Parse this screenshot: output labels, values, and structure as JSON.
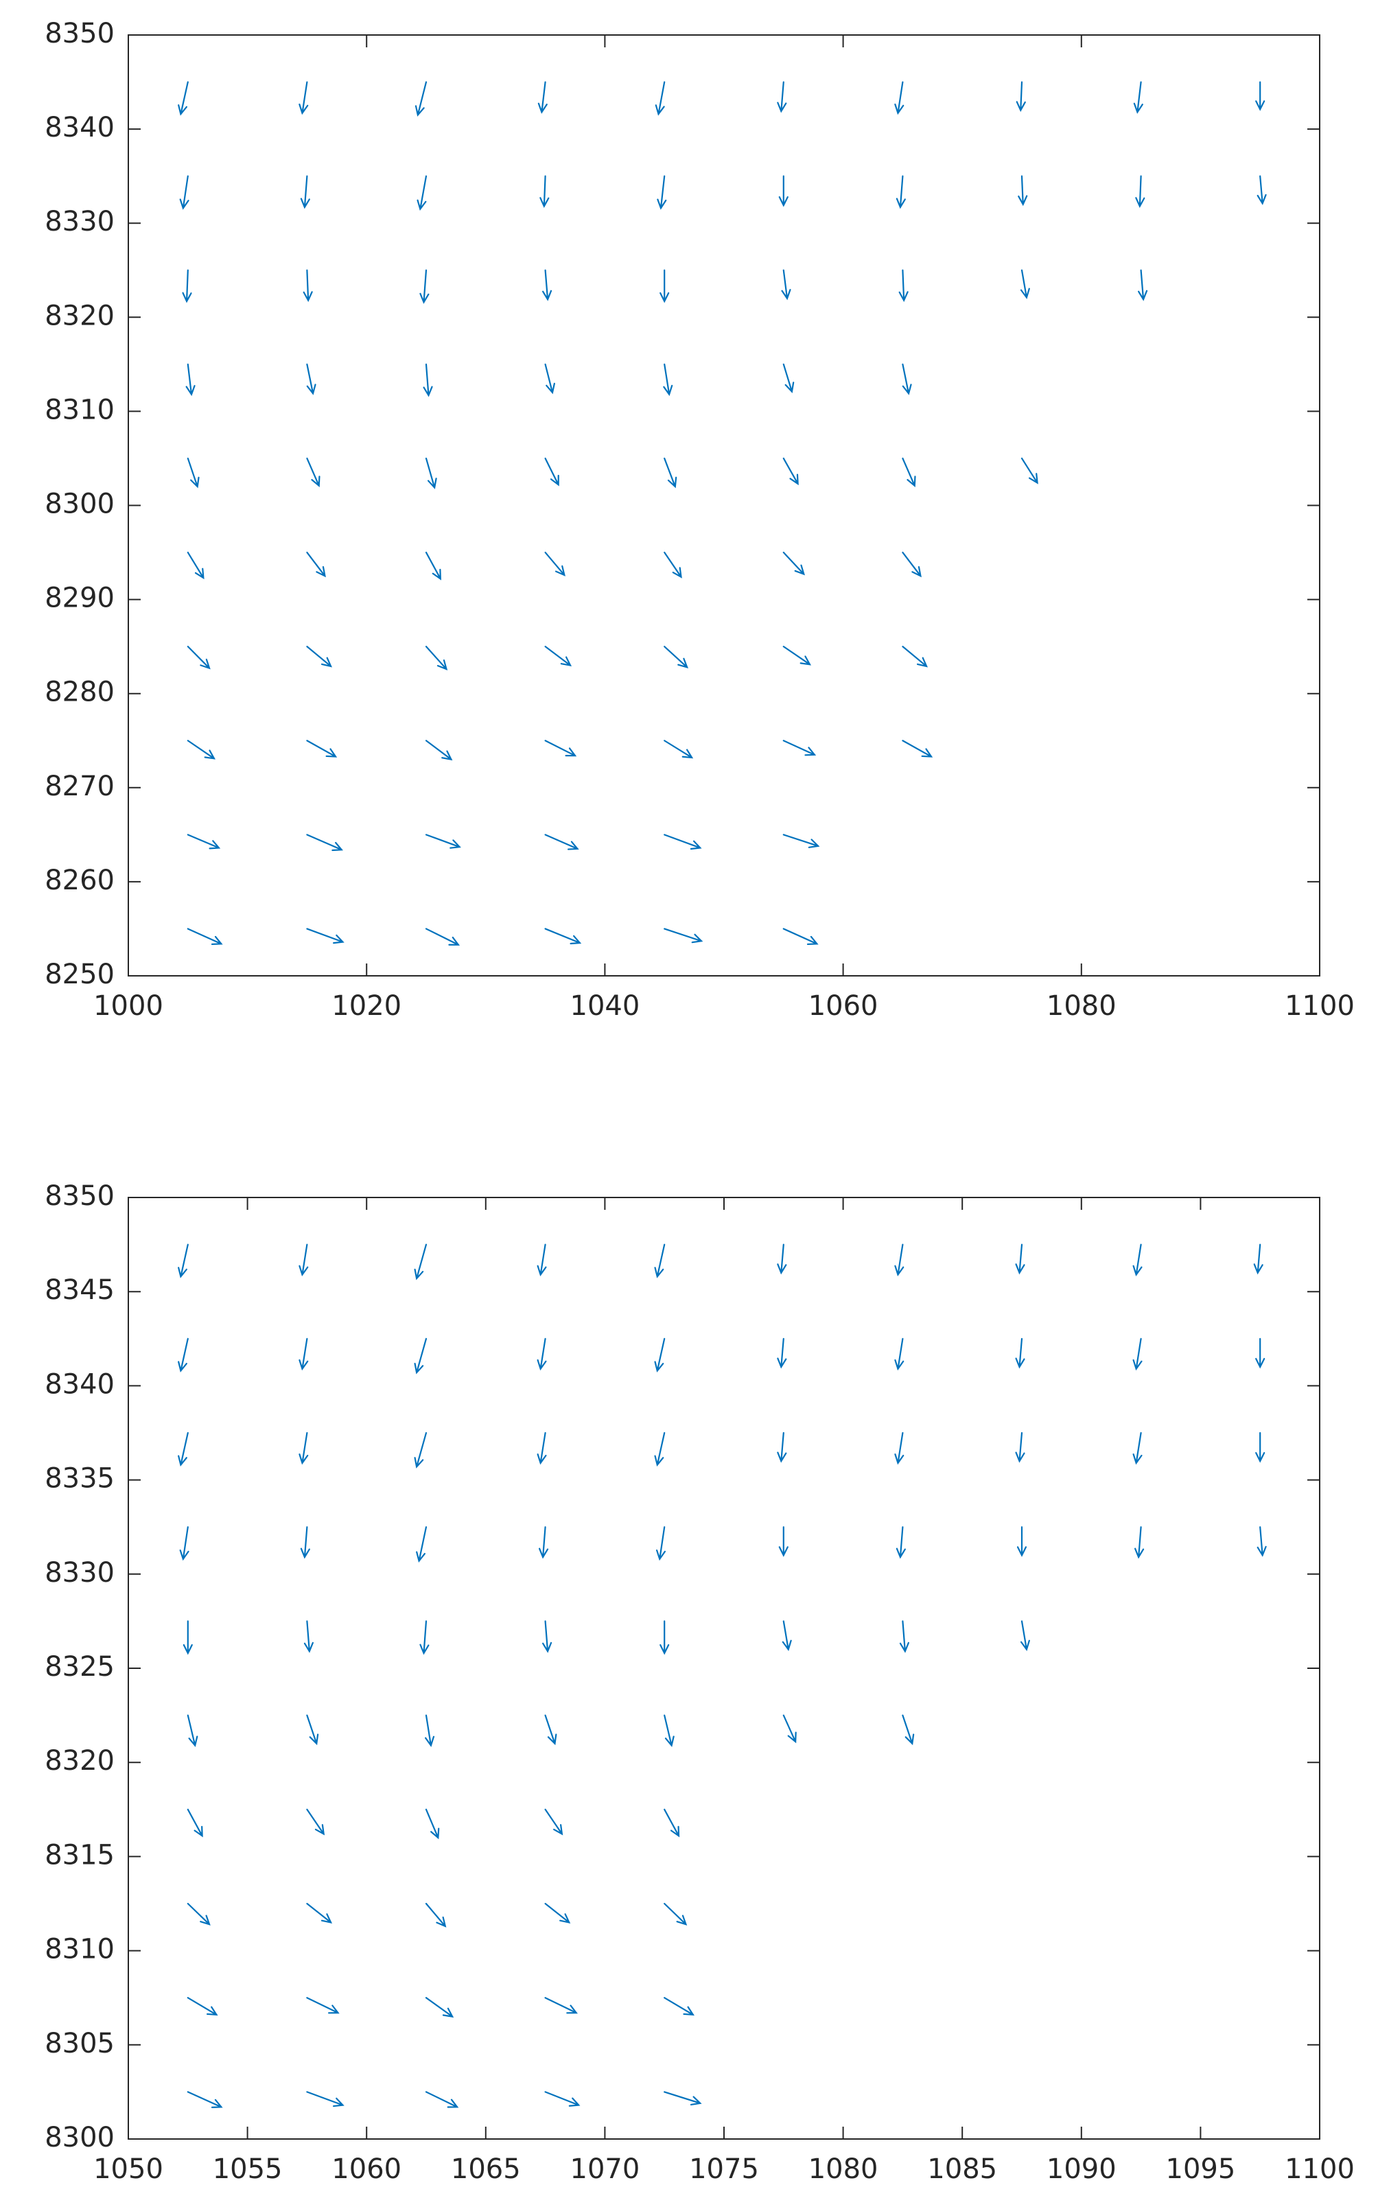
{
  "chart_data": [
    {
      "type": "quiver",
      "color": "#0072bd",
      "xlim": [
        1000,
        1100
      ],
      "ylim": [
        8250,
        8350
      ],
      "xticks": [
        1000,
        1020,
        1040,
        1060,
        1080,
        1100
      ],
      "yticks": [
        8250,
        8260,
        8270,
        8280,
        8290,
        8300,
        8310,
        8320,
        8330,
        8340,
        8350
      ],
      "x": [
        1005,
        1015,
        1025,
        1035,
        1045,
        1055,
        1005,
        1015,
        1025,
        1035,
        1045,
        1055,
        1005,
        1015,
        1025,
        1035,
        1045,
        1055,
        1065,
        1005,
        1015,
        1025,
        1035,
        1045,
        1055,
        1065,
        1005,
        1015,
        1025,
        1035,
        1045,
        1055,
        1065,
        1005,
        1015,
        1025,
        1035,
        1045,
        1055,
        1065,
        1075,
        1005,
        1015,
        1025,
        1035,
        1045,
        1055,
        1065,
        1005,
        1015,
        1025,
        1035,
        1045,
        1055,
        1065,
        1075,
        1085,
        1005,
        1015,
        1025,
        1035,
        1045,
        1055,
        1065,
        1075,
        1085,
        1095,
        1005,
        1015,
        1025,
        1035,
        1045,
        1055,
        1065,
        1075,
        1085,
        1095
      ],
      "y": [
        8255,
        8255,
        8255,
        8255,
        8255,
        8255,
        8265,
        8265,
        8265,
        8265,
        8265,
        8265,
        8275,
        8275,
        8275,
        8275,
        8275,
        8275,
        8275,
        8285,
        8285,
        8285,
        8285,
        8285,
        8285,
        8285,
        8295,
        8295,
        8295,
        8295,
        8295,
        8295,
        8295,
        8305,
        8305,
        8305,
        8305,
        8305,
        8305,
        8305,
        8305,
        8315,
        8315,
        8315,
        8315,
        8315,
        8315,
        8315,
        8325,
        8325,
        8325,
        8325,
        8325,
        8325,
        8325,
        8325,
        8325,
        8335,
        8335,
        8335,
        8335,
        8335,
        8335,
        8335,
        8335,
        8335,
        8335,
        8345,
        8345,
        8345,
        8345,
        8345,
        8345,
        8345,
        8345,
        8345,
        8345
      ],
      "u": [
        2.8,
        3.0,
        2.7,
        2.9,
        3.1,
        2.8,
        2.6,
        2.9,
        2.8,
        2.7,
        3.0,
        2.9,
        2.2,
        2.4,
        2.1,
        2.5,
        2.3,
        2.6,
        2.4,
        1.8,
        2.0,
        1.7,
        2.1,
        1.9,
        2.2,
        2.0,
        1.3,
        1.5,
        1.2,
        1.6,
        1.4,
        1.7,
        1.5,
        0.8,
        1.0,
        0.7,
        1.1,
        0.9,
        1.2,
        1.0,
        1.3,
        0.3,
        0.5,
        0.2,
        0.6,
        0.4,
        0.7,
        0.5,
        -0.1,
        0.1,
        -0.2,
        0.2,
        0.0,
        0.3,
        0.1,
        0.4,
        0.2,
        -0.4,
        -0.2,
        -0.5,
        -0.1,
        -0.3,
        0.0,
        -0.2,
        0.1,
        -0.1,
        0.2,
        -0.6,
        -0.4,
        -0.7,
        -0.3,
        -0.5,
        -0.2,
        -0.4,
        -0.1,
        -0.3,
        0.0
      ],
      "v": [
        -1.6,
        -1.4,
        -1.7,
        -1.5,
        -1.3,
        -1.6,
        -1.4,
        -1.6,
        -1.3,
        -1.5,
        -1.4,
        -1.2,
        -1.9,
        -1.7,
        -2.0,
        -1.6,
        -1.8,
        -1.5,
        -1.7,
        -2.3,
        -2.1,
        -2.4,
        -2.0,
        -2.2,
        -1.9,
        -2.1,
        -2.7,
        -2.5,
        -2.8,
        -2.4,
        -2.6,
        -2.3,
        -2.5,
        -3.0,
        -2.9,
        -3.1,
        -2.8,
        -3.0,
        -2.7,
        -2.9,
        -2.6,
        -3.2,
        -3.1,
        -3.3,
        -3.0,
        -3.2,
        -2.9,
        -3.1,
        -3.3,
        -3.2,
        -3.4,
        -3.1,
        -3.3,
        -3.0,
        -3.2,
        -2.9,
        -3.1,
        -3.4,
        -3.3,
        -3.5,
        -3.2,
        -3.4,
        -3.1,
        -3.3,
        -3.0,
        -3.2,
        -2.9,
        -3.4,
        -3.3,
        -3.5,
        -3.2,
        -3.4,
        -3.1,
        -3.3,
        -3.0,
        -3.2,
        -2.9
      ]
    },
    {
      "type": "quiver",
      "color": "#0072bd",
      "xlim": [
        1050,
        1100
      ],
      "ylim": [
        8300,
        8350
      ],
      "xticks": [
        1050,
        1055,
        1060,
        1065,
        1070,
        1075,
        1080,
        1085,
        1090,
        1095,
        1100
      ],
      "yticks": [
        8300,
        8305,
        8310,
        8315,
        8320,
        8325,
        8330,
        8335,
        8340,
        8345,
        8350
      ],
      "x": [
        1052.5,
        1057.5,
        1062.5,
        1067.5,
        1072.5,
        1052.5,
        1057.5,
        1062.5,
        1067.5,
        1072.5,
        1052.5,
        1057.5,
        1062.5,
        1067.5,
        1072.5,
        1052.5,
        1057.5,
        1062.5,
        1067.5,
        1072.5,
        1052.5,
        1057.5,
        1062.5,
        1067.5,
        1072.5,
        1077.5,
        1082.5,
        1052.5,
        1057.5,
        1062.5,
        1067.5,
        1072.5,
        1077.5,
        1082.5,
        1087.5,
        1052.5,
        1057.5,
        1062.5,
        1067.5,
        1072.5,
        1077.5,
        1082.5,
        1087.5,
        1092.5,
        1097.5,
        1052.5,
        1057.5,
        1062.5,
        1067.5,
        1072.5,
        1077.5,
        1082.5,
        1087.5,
        1092.5,
        1097.5,
        1052.5,
        1057.5,
        1062.5,
        1067.5,
        1072.5,
        1077.5,
        1082.5,
        1087.5,
        1092.5,
        1097.5,
        1052.5,
        1057.5,
        1062.5,
        1067.5,
        1072.5,
        1077.5,
        1082.5,
        1087.5,
        1092.5,
        1097.5
      ],
      "y": [
        8302.5,
        8302.5,
        8302.5,
        8302.5,
        8302.5,
        8307.5,
        8307.5,
        8307.5,
        8307.5,
        8307.5,
        8312.5,
        8312.5,
        8312.5,
        8312.5,
        8312.5,
        8317.5,
        8317.5,
        8317.5,
        8317.5,
        8317.5,
        8322.5,
        8322.5,
        8322.5,
        8322.5,
        8322.5,
        8322.5,
        8322.5,
        8327.5,
        8327.5,
        8327.5,
        8327.5,
        8327.5,
        8327.5,
        8327.5,
        8327.5,
        8332.5,
        8332.5,
        8332.5,
        8332.5,
        8332.5,
        8332.5,
        8332.5,
        8332.5,
        8332.5,
        8332.5,
        8337.5,
        8337.5,
        8337.5,
        8337.5,
        8337.5,
        8337.5,
        8337.5,
        8337.5,
        8337.5,
        8337.5,
        8342.5,
        8342.5,
        8342.5,
        8342.5,
        8342.5,
        8342.5,
        8342.5,
        8342.5,
        8342.5,
        8342.5,
        8347.5,
        8347.5,
        8347.5,
        8347.5,
        8347.5,
        8347.5,
        8347.5,
        8347.5,
        8347.5,
        8347.5
      ],
      "u": [
        1.4,
        1.5,
        1.3,
        1.4,
        1.5,
        1.2,
        1.3,
        1.1,
        1.3,
        1.2,
        0.9,
        1.0,
        0.8,
        1.0,
        0.9,
        0.6,
        0.7,
        0.5,
        0.7,
        0.6,
        0.3,
        0.4,
        0.2,
        0.4,
        0.3,
        0.5,
        0.4,
        0.0,
        0.1,
        -0.1,
        0.1,
        0.0,
        0.2,
        0.1,
        0.2,
        -0.2,
        -0.1,
        -0.3,
        -0.1,
        -0.2,
        0.0,
        -0.1,
        0.0,
        -0.1,
        0.1,
        -0.3,
        -0.2,
        -0.4,
        -0.2,
        -0.3,
        -0.1,
        -0.2,
        -0.1,
        -0.2,
        0.0,
        -0.3,
        -0.2,
        -0.4,
        -0.2,
        -0.3,
        -0.1,
        -0.2,
        -0.1,
        -0.2,
        0.0,
        -0.3,
        -0.2,
        -0.4,
        -0.2,
        -0.3,
        -0.1,
        -0.2,
        -0.1,
        -0.2,
        -0.1
      ],
      "v": [
        -0.8,
        -0.7,
        -0.8,
        -0.7,
        -0.6,
        -0.9,
        -0.8,
        -1.0,
        -0.8,
        -0.9,
        -1.1,
        -1.0,
        -1.2,
        -1.0,
        -1.1,
        -1.4,
        -1.3,
        -1.5,
        -1.3,
        -1.4,
        -1.6,
        -1.5,
        -1.6,
        -1.5,
        -1.6,
        -1.4,
        -1.5,
        -1.7,
        -1.6,
        -1.7,
        -1.6,
        -1.7,
        -1.5,
        -1.6,
        -1.5,
        -1.7,
        -1.6,
        -1.8,
        -1.6,
        -1.7,
        -1.5,
        -1.6,
        -1.5,
        -1.6,
        -1.5,
        -1.7,
        -1.6,
        -1.8,
        -1.6,
        -1.7,
        -1.5,
        -1.6,
        -1.5,
        -1.6,
        -1.5,
        -1.7,
        -1.6,
        -1.8,
        -1.6,
        -1.7,
        -1.5,
        -1.6,
        -1.5,
        -1.6,
        -1.5,
        -1.7,
        -1.6,
        -1.8,
        -1.6,
        -1.7,
        -1.5,
        -1.6,
        -1.5,
        -1.6,
        -1.5
      ]
    }
  ]
}
